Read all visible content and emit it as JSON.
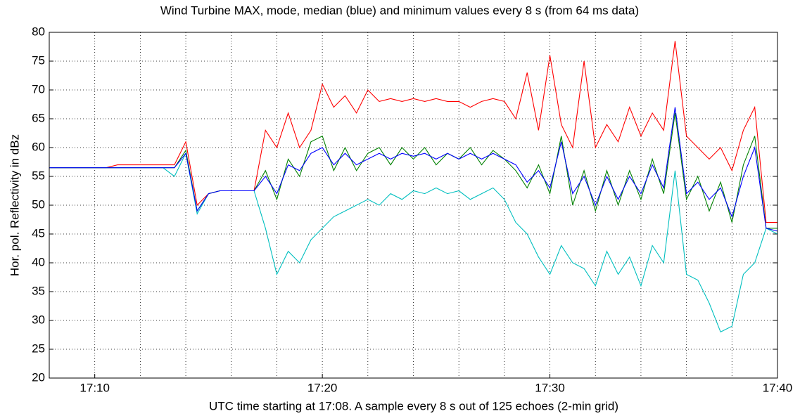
{
  "chart_data": {
    "type": "line",
    "title": "Wind Turbine MAX, mode, median (blue) and minimum values every 8 s (from 64 ms data)",
    "xlabel": "UTC time starting at 17:08. A sample every 8 s out of 125 echoes (2-min grid)",
    "ylabel": "Hor. pol. Reflectivity in dBz",
    "x": [
      8,
      8.5,
      9,
      9.5,
      10,
      10.5,
      11,
      11.5,
      12,
      12.5,
      13,
      13.5,
      14,
      14.5,
      15,
      15.5,
      16,
      16.5,
      17,
      17.5,
      18,
      18.5,
      19,
      19.5,
      20,
      20.5,
      21,
      21.5,
      22,
      22.5,
      23,
      23.5,
      24,
      24.5,
      25,
      25.5,
      26,
      26.5,
      27,
      27.5,
      28,
      28.5,
      29,
      29.5,
      30,
      30.5,
      31,
      31.5,
      32,
      32.5,
      33,
      33.5,
      34,
      34.5,
      35,
      35.5,
      36,
      36.5,
      37,
      37.5,
      38,
      38.5,
      39,
      39.5,
      40
    ],
    "series": [
      {
        "color": "#ff0000",
        "values": [
          56.5,
          56.5,
          56.5,
          56.5,
          56.5,
          56.5,
          57,
          57,
          57,
          57,
          57,
          57,
          61,
          50,
          52,
          52.5,
          52.5,
          52.5,
          52.5,
          63,
          60,
          66,
          60,
          63,
          71,
          67,
          69,
          66,
          70,
          68,
          68.5,
          68,
          68.5,
          68,
          68.5,
          68,
          68,
          67,
          68,
          68.5,
          68,
          65,
          73,
          63,
          76,
          64,
          60,
          75,
          60,
          64,
          61,
          67,
          62,
          66,
          63,
          78.5,
          62,
          60,
          58,
          60,
          56,
          63,
          67,
          47,
          47
        ]
      },
      {
        "color": "#00bfbf",
        "values": [
          56.5,
          56.5,
          56.5,
          56.5,
          56.5,
          56.5,
          56.5,
          56.5,
          56.5,
          56.5,
          56.5,
          55,
          59,
          48.5,
          52,
          52.5,
          52.5,
          52.5,
          52.5,
          46,
          38,
          42,
          40,
          44,
          46,
          48,
          49,
          50,
          51,
          50,
          52,
          51,
          52.5,
          52,
          53,
          52,
          52.5,
          51,
          52,
          53,
          51,
          47,
          45,
          41,
          38,
          43,
          40,
          39,
          36,
          42,
          38,
          41,
          36,
          43,
          40,
          56,
          38,
          37,
          33,
          28,
          29,
          38,
          40,
          46,
          45
        ]
      },
      {
        "color": "#008000",
        "values": [
          56.5,
          56.5,
          56.5,
          56.5,
          56.5,
          56.5,
          56.5,
          56.5,
          56.5,
          56.5,
          56.5,
          56.5,
          59.5,
          49,
          52,
          52.5,
          52.5,
          52.5,
          52.5,
          56,
          51,
          58,
          55,
          61,
          62,
          56,
          60,
          56,
          59,
          60,
          57,
          60,
          58,
          60,
          57,
          59,
          58,
          60,
          57,
          59.5,
          58,
          56,
          53,
          57,
          52,
          62,
          50,
          56,
          49,
          56,
          50,
          56,
          51,
          58,
          52,
          66,
          51,
          55,
          49,
          54,
          47,
          57,
          62,
          46,
          46
        ]
      },
      {
        "color": "#0000ff",
        "values": [
          56.5,
          56.5,
          56.5,
          56.5,
          56.5,
          56.5,
          56.5,
          56.5,
          56.5,
          56.5,
          56.5,
          56.5,
          59,
          49,
          52,
          52.5,
          52.5,
          52.5,
          52.5,
          55,
          52,
          57,
          56,
          59,
          60,
          57,
          59,
          57,
          58,
          59,
          58,
          59,
          58.5,
          59,
          58,
          59,
          58,
          59,
          58,
          59,
          58,
          57,
          54,
          56,
          53,
          61,
          52,
          55,
          50,
          55,
          51,
          55,
          52,
          57,
          53,
          67,
          52,
          54,
          51,
          53,
          48,
          55,
          60,
          46,
          45.5
        ]
      }
    ],
    "xlim": [
      8,
      40
    ],
    "xticks": [
      {
        "value": 10,
        "label": "17:10"
      },
      {
        "value": 20,
        "label": "17:20"
      },
      {
        "value": 30,
        "label": "17:30"
      },
      {
        "value": 40,
        "label": "17:40"
      }
    ],
    "xgrid": [
      10,
      12,
      14,
      16,
      18,
      20,
      22,
      24,
      26,
      28,
      30,
      32,
      34,
      36,
      38
    ],
    "ylim": [
      20,
      80
    ],
    "yticks": [
      20,
      25,
      30,
      35,
      40,
      45,
      50,
      55,
      60,
      65,
      70,
      75,
      80
    ],
    "grid": true
  }
}
